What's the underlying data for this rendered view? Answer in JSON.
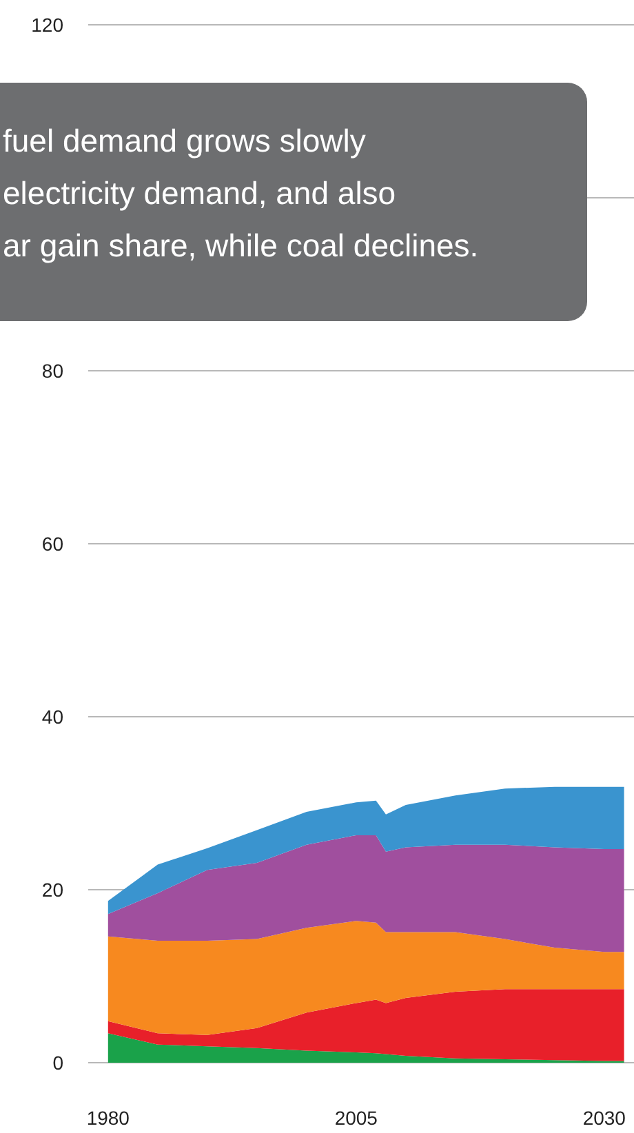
{
  "chart_data": {
    "type": "area",
    "stacked": true,
    "annotations": [
      "fuel demand grows slowly\nelectricity demand, and also\nar gain share, while coal declines."
    ],
    "x": [
      1980,
      1985,
      1990,
      1995,
      2000,
      2005,
      2007,
      2008,
      2010,
      2015,
      2020,
      2025,
      2030,
      2032
    ],
    "series": [
      {
        "color": "#1aa24a",
        "values": [
          3.4,
          2.1,
          1.9,
          1.7,
          1.4,
          1.2,
          1.1,
          1.0,
          0.8,
          0.5,
          0.4,
          0.3,
          0.2,
          0.2
        ]
      },
      {
        "color": "#e8202a",
        "values": [
          1.4,
          1.3,
          1.3,
          2.3,
          4.4,
          5.7,
          6.2,
          5.9,
          6.7,
          7.7,
          8.1,
          8.2,
          8.3,
          8.3
        ]
      },
      {
        "color": "#f7891f",
        "values": [
          9.8,
          10.7,
          10.9,
          10.3,
          9.8,
          9.5,
          8.9,
          8.2,
          7.6,
          6.9,
          5.8,
          4.8,
          4.3,
          4.3
        ]
      },
      {
        "color": "#a04f9e",
        "values": [
          2.6,
          5.5,
          8.2,
          8.8,
          9.6,
          9.9,
          10.1,
          9.3,
          9.8,
          10.1,
          10.9,
          11.6,
          11.9,
          11.9
        ]
      },
      {
        "color": "#3a94cf",
        "values": [
          1.5,
          3.3,
          2.5,
          3.8,
          3.8,
          3.8,
          4.0,
          4.3,
          4.9,
          5.7,
          6.5,
          7.0,
          7.2,
          7.2
        ]
      }
    ],
    "xlim": [
      1978,
      2033
    ],
    "xticks": [
      1980,
      2005,
      2030
    ],
    "ylim": [
      0,
      120
    ],
    "yticks": [
      0,
      20,
      40,
      60,
      80,
      {
        "value": 100,
        "label": null
      },
      120
    ],
    "grid": true
  }
}
